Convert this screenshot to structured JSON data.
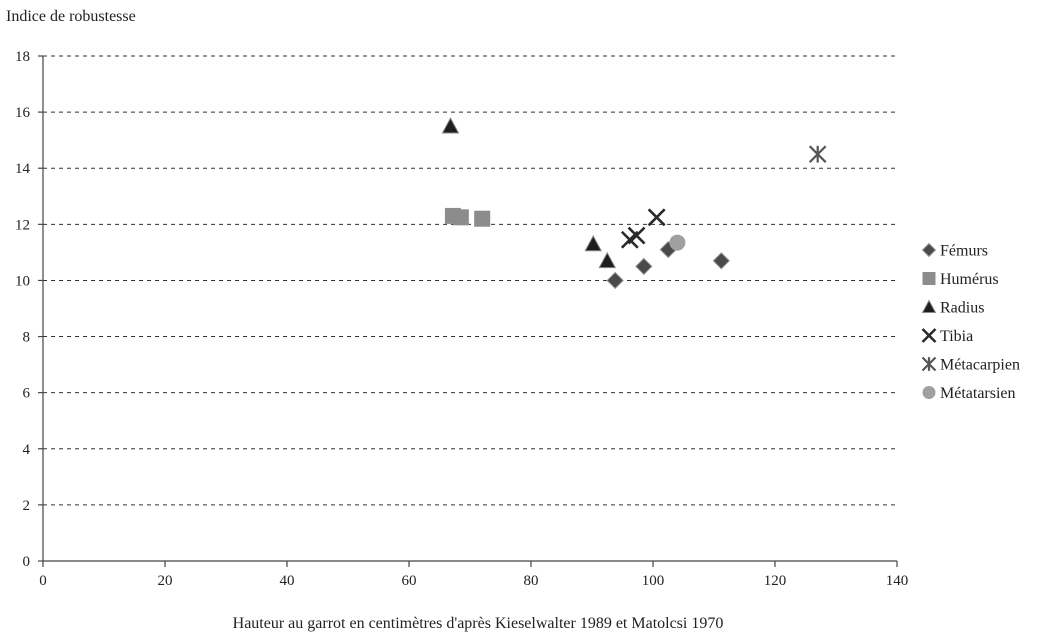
{
  "chart_data": {
    "type": "scatter",
    "ylabel": "Indice de robustesse",
    "xlabel": "Hauteur au garrot en centimètres d'après Kieselwalter 1989 et Matolcsi 1970",
    "xlim": [
      0,
      140
    ],
    "ylim": [
      0,
      18
    ],
    "xticks": [
      0,
      20,
      40,
      60,
      80,
      100,
      120,
      140
    ],
    "yticks": [
      0,
      2,
      4,
      6,
      8,
      10,
      12,
      14,
      16,
      18
    ],
    "grid": "horizontal-dashed",
    "legend_position": "right",
    "series": [
      {
        "name": "Fémurs",
        "marker": "diamond",
        "color": "#4a4a4a",
        "points": [
          [
            93.8,
            10.0
          ],
          [
            98.5,
            10.5
          ],
          [
            102.5,
            11.1
          ],
          [
            111.2,
            10.7
          ]
        ]
      },
      {
        "name": "Humérus",
        "marker": "square",
        "color": "#8c8c8c",
        "points": [
          [
            67.2,
            12.3
          ],
          [
            68.5,
            12.25
          ],
          [
            72.0,
            12.2
          ]
        ]
      },
      {
        "name": "Radius",
        "marker": "triangle",
        "color": "#1e1e1e",
        "points": [
          [
            66.8,
            15.5
          ],
          [
            90.2,
            11.3
          ],
          [
            92.5,
            10.7
          ]
        ]
      },
      {
        "name": "Tibia",
        "marker": "x",
        "color": "#2a2a2a",
        "points": [
          [
            96.2,
            11.45
          ],
          [
            97.3,
            11.6
          ],
          [
            100.6,
            12.25
          ]
        ]
      },
      {
        "name": "Métacarpien",
        "marker": "asterisk",
        "color": "#555555",
        "points": [
          [
            127.0,
            14.5
          ]
        ]
      },
      {
        "name": "Métatarsien",
        "marker": "circle",
        "color": "#a0a0a0",
        "points": [
          [
            104.0,
            11.35
          ]
        ]
      }
    ]
  }
}
